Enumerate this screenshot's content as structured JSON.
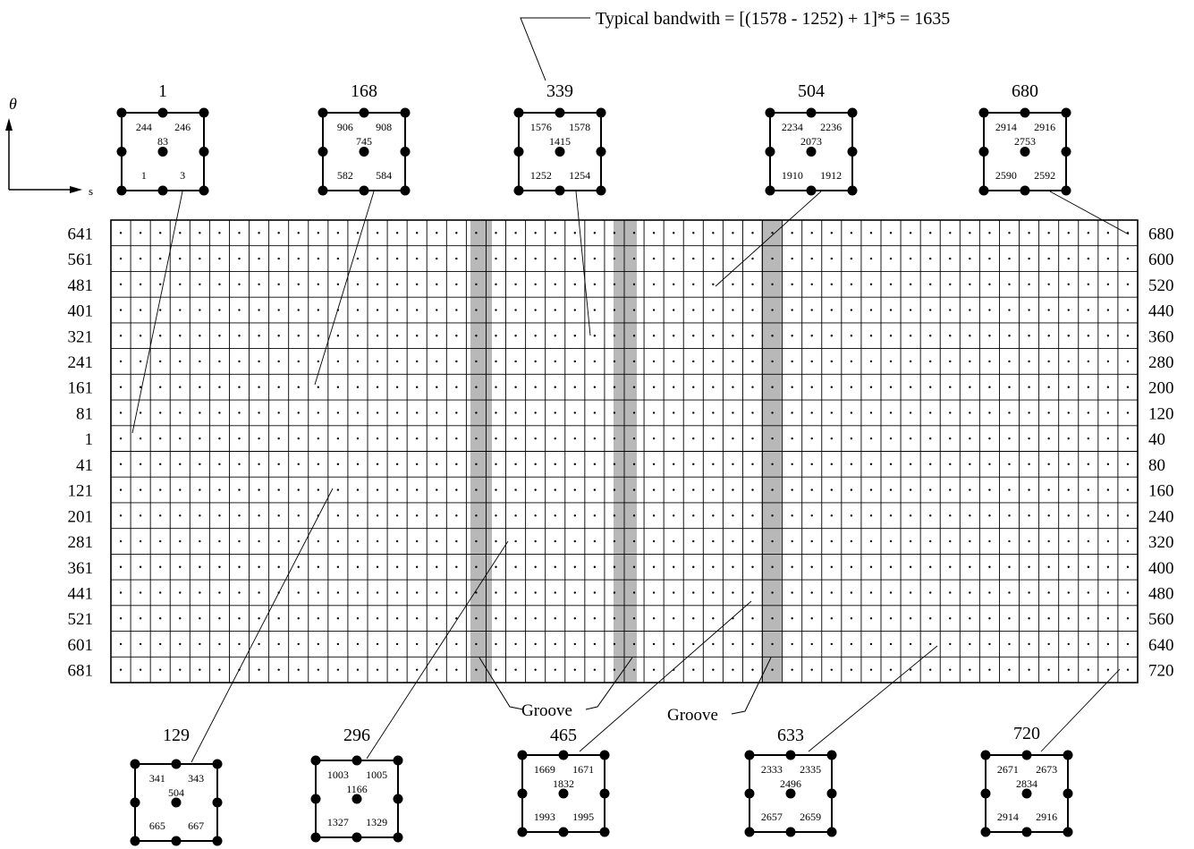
{
  "annotation": "Typical bandwith = [(1578 - 1252) + 1]*5 = 1635",
  "axes": {
    "theta": "θ",
    "s": "s"
  },
  "groove_labels": [
    "Groove",
    "Groove"
  ],
  "left_row_labels": [
    "641",
    "561",
    "481",
    "401",
    "321",
    "241",
    "161",
    "81",
    "1",
    "41",
    "121",
    "201",
    "281",
    "361",
    "441",
    "521",
    "601",
    "681"
  ],
  "right_row_labels": [
    "680",
    "600",
    "520",
    "440",
    "360",
    "280",
    "200",
    "120",
    "40",
    "80",
    "160",
    "240",
    "320",
    "400",
    "480",
    "560",
    "640",
    "720"
  ],
  "top_elements": [
    {
      "title": "1",
      "tl": "244",
      "tr": "246",
      "center": "83",
      "bl": "1",
      "br": "3"
    },
    {
      "title": "168",
      "tl": "906",
      "tr": "908",
      "center": "745",
      "bl": "582",
      "br": "584"
    },
    {
      "title": "339",
      "tl": "1576",
      "tr": "1578",
      "center": "1415",
      "bl": "1252",
      "br": "1254"
    },
    {
      "title": "504",
      "tl": "2234",
      "tr": "2236",
      "center": "2073",
      "bl": "1910",
      "br": "1912"
    },
    {
      "title": "680",
      "tl": "2914",
      "tr": "2916",
      "center": "2753",
      "bl": "2590",
      "br": "2592"
    }
  ],
  "bottom_elements": [
    {
      "title": "129",
      "tl": "341",
      "tr": "343",
      "center": "504",
      "bl": "665",
      "br": "667"
    },
    {
      "title": "296",
      "tl": "1003",
      "tr": "1005",
      "center": "1166",
      "bl": "1327",
      "br": "1329"
    },
    {
      "title": "465",
      "tl": "1669",
      "tr": "1671",
      "center": "1832",
      "bl": "1993",
      "br": "1995"
    },
    {
      "title": "633",
      "tl": "2333",
      "tr": "2335",
      "center": "2496",
      "bl": "2657",
      "br": "2659"
    },
    {
      "title": "720",
      "tl": "2671",
      "tr": "2673",
      "center": "2834",
      "bl": "2914",
      "br": "2916"
    }
  ]
}
